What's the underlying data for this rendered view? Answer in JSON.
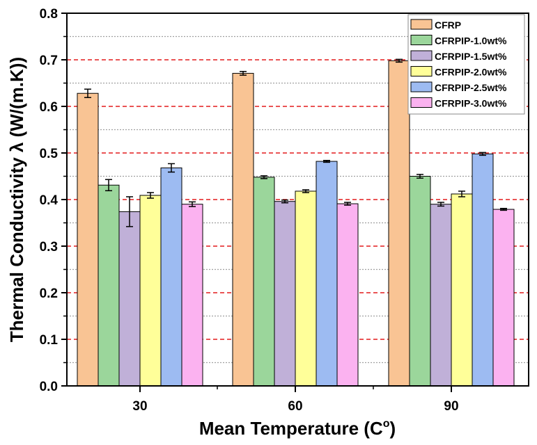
{
  "chart_data": {
    "type": "bar",
    "title": "",
    "xlabel": "Mean Temperature (C",
    "xlabel_sup": "o",
    "xlabel_close": ")",
    "ylabel": "Thermal Conductivity λ (W/(m.K))",
    "ylim": [
      0.0,
      0.8
    ],
    "yticks": [
      "0.0",
      "0.1",
      "0.2",
      "0.3",
      "0.4",
      "0.5",
      "0.6",
      "0.7",
      "0.8"
    ],
    "categories": [
      "30",
      "60",
      "90"
    ],
    "legend_position": "top-right",
    "series": [
      {
        "name": "CFRP",
        "color": "#F9C494",
        "values": [
          0.628,
          0.671,
          0.698
        ],
        "errors": [
          0.009,
          0.004,
          0.003
        ]
      },
      {
        "name": "CFRPIP-1.0wt%",
        "color": "#9BD69B",
        "values": [
          0.431,
          0.448,
          0.45
        ],
        "errors": [
          0.012,
          0.003,
          0.004
        ]
      },
      {
        "name": "CFRPIP-1.5wt%",
        "color": "#C0B0D8",
        "values": [
          0.374,
          0.396,
          0.39
        ],
        "errors": [
          0.032,
          0.003,
          0.004
        ]
      },
      {
        "name": "CFRPIP-2.0wt%",
        "color": "#FFFF99",
        "values": [
          0.409,
          0.418,
          0.412
        ],
        "errors": [
          0.006,
          0.003,
          0.006
        ]
      },
      {
        "name": "CFRPIP-2.5wt%",
        "color": "#9DBBF2",
        "values": [
          0.468,
          0.482,
          0.498
        ],
        "errors": [
          0.009,
          0.002,
          0.003
        ]
      },
      {
        "name": "CFRPIP-3.0wt%",
        "color": "#FBB2F0",
        "values": [
          0.39,
          0.391,
          0.379
        ],
        "errors": [
          0.005,
          0.003,
          0.002
        ]
      }
    ],
    "gridlines": {
      "major_color": "#E31A1C",
      "minor_color": "#A0A0A0"
    }
  }
}
